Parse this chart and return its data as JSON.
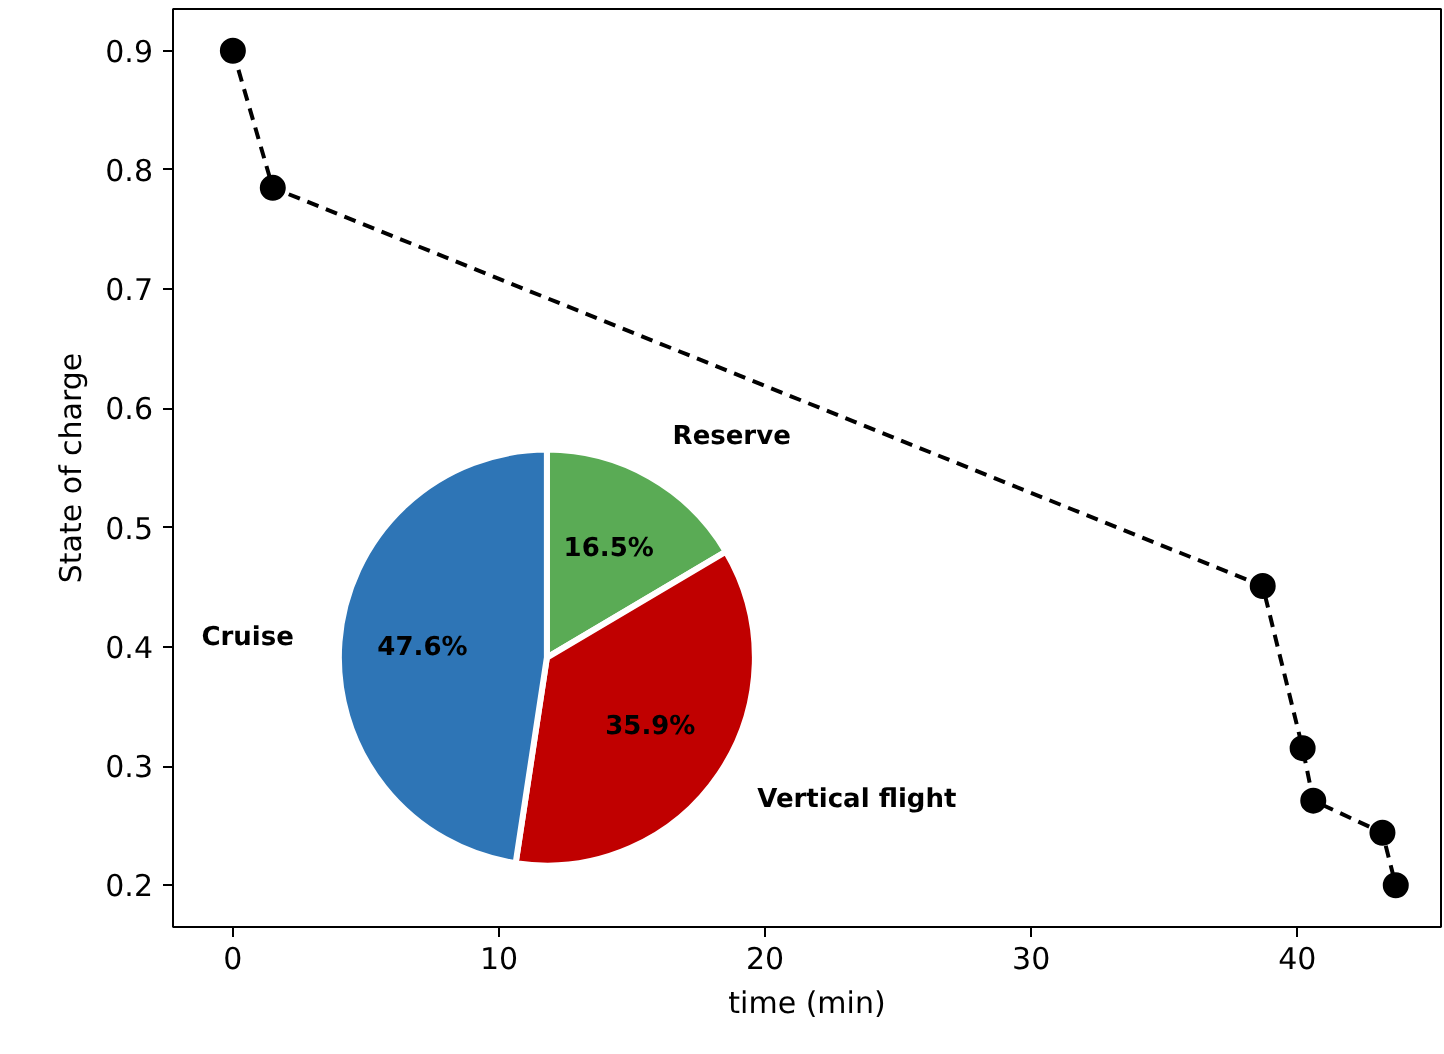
{
  "chart_data": [
    {
      "type": "line",
      "xlabel": "time (min)",
      "ylabel": "State of charge",
      "x": [
        0,
        1.5,
        38.7,
        40.2,
        40.6,
        43.2,
        43.7
      ],
      "values": [
        0.9,
        0.785,
        0.451,
        0.315,
        0.271,
        0.244,
        0.2
      ],
      "color": "#000000",
      "marker": "circle",
      "line_style": "dashed",
      "grid": false,
      "xlim": [
        -2.25,
        45.4
      ],
      "ylim": [
        0.165,
        0.935
      ],
      "xticks": [
        0,
        10,
        20,
        30,
        40
      ],
      "yticks": [
        0.2,
        0.3,
        0.4,
        0.5,
        0.6,
        0.7,
        0.8,
        0.9
      ]
    },
    {
      "type": "pie",
      "categories": [
        "Reserve",
        "Vertical flight",
        "Cruise"
      ],
      "values": [
        16.5,
        35.9,
        47.6
      ],
      "colors": [
        "#5aab55",
        "#c00000",
        "#2e75b6"
      ],
      "value_labels": [
        "16.5%",
        "35.9%",
        "47.6%"
      ]
    }
  ]
}
